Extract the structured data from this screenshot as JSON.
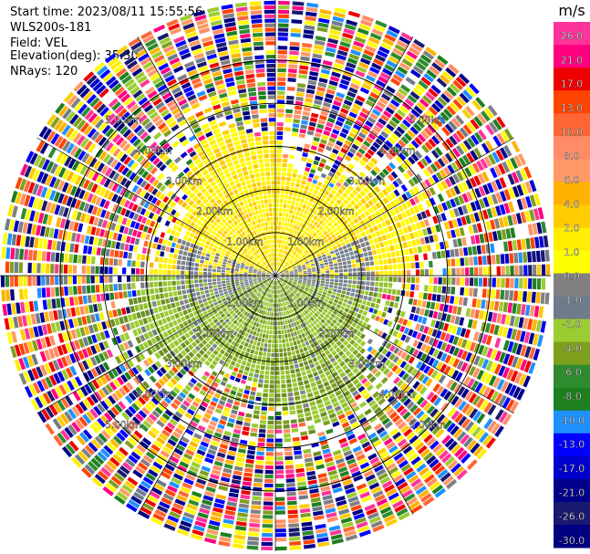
{
  "header": {
    "start_time": "Start time: 2023/08/11 15:55:56",
    "device": "WLS200s-181",
    "field": "Field: VEL",
    "elevation": "Elevation(deg): 35.30",
    "nrays": "NRays: 120"
  },
  "chart_data": {
    "type": "heatmap",
    "subtype": "polar-ppi",
    "field": "VEL",
    "nrays": 120,
    "range_rings_km": [
      1,
      2,
      3,
      4,
      5
    ],
    "ring_labels": [
      "1.00km",
      "2.00km",
      "3.00km",
      "4.00km",
      "5.00km"
    ],
    "grid": true,
    "colorbar": {
      "unit": "m/s",
      "position": "right",
      "ticks": [
        "26.0",
        "21.0",
        "17.0",
        "13.0",
        "10.0",
        "8.0",
        "6.0",
        "4.0",
        "2.0",
        "1.0",
        "0.0",
        "-1.0",
        "-2.0",
        "-4.0",
        "-6.0",
        "-8.0",
        "-10.0",
        "-13.0",
        "-17.0",
        "-21.0",
        "-26.0",
        "-30.0"
      ],
      "colors": [
        "#ff3399",
        "#ff0080",
        "#ee0000",
        "#ff4400",
        "#ff6633",
        "#ff8c66",
        "#ff9966",
        "#ffb300",
        "#ffcc00",
        "#ffee00",
        "#ffff00",
        "#808080",
        "#6e7b8b",
        "#9acd32",
        "#7f9f1f",
        "#2e8b2e",
        "#1e7f1e",
        "#1e90ff",
        "#0000ff",
        "#0000cd",
        "#00008b",
        "#191970",
        "#000080"
      ]
    }
  }
}
